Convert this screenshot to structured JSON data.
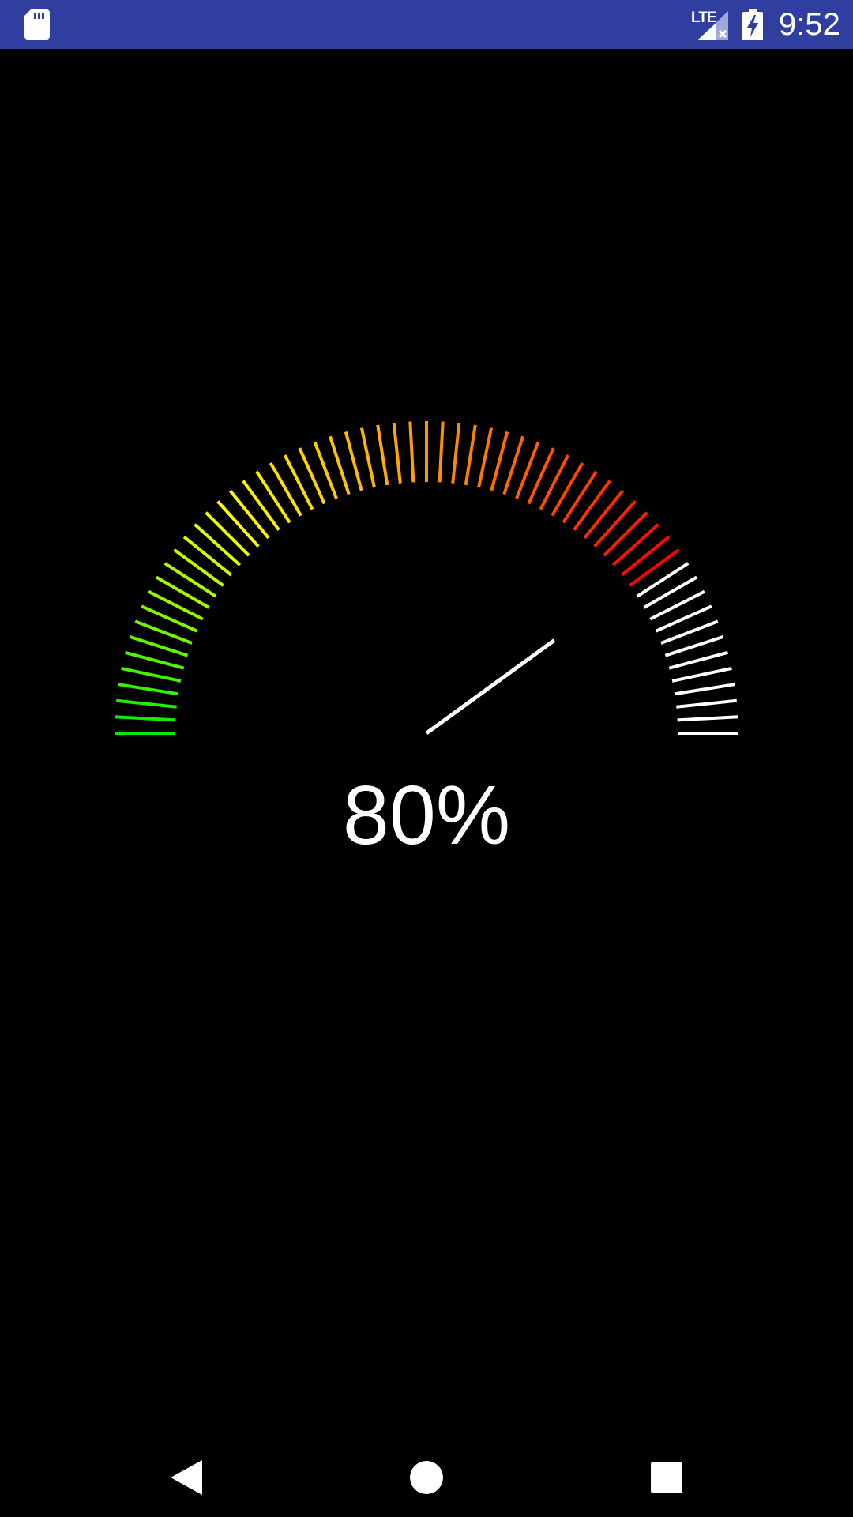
{
  "status_bar": {
    "network_label": "LTE",
    "time": "9:52",
    "background_color": "#303F9F",
    "icons": [
      "sd-card-icon",
      "signal-icon",
      "battery-charging-icon"
    ]
  },
  "gauge": {
    "value": 80,
    "min": 0,
    "max": 100,
    "display_text": "80%",
    "tick_count": 61,
    "color_stops": [
      "#00ee00",
      "#ffff00",
      "#ff8800",
      "#ff0000"
    ],
    "inactive_color": "#ffffff",
    "needle_color": "#ffffff"
  },
  "nav_bar": {
    "buttons": [
      "back-icon",
      "home-icon",
      "recents-icon"
    ]
  }
}
